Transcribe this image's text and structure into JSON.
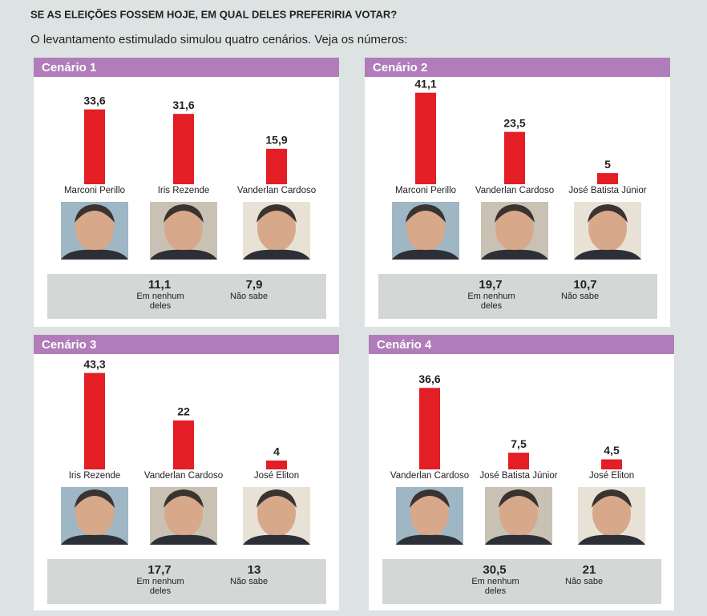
{
  "title": "SE AS ELEIÇÕES FOSSEM HOJE, EM QUAL DELES PREFERIRIA VOTAR?",
  "subtitle": "O levantamento estimulado simulou quatro cenários. Veja os números:",
  "chart_data": [
    {
      "type": "bar",
      "title": "Cenário 1",
      "color": "#e31e24",
      "categories": [
        "Marconi Perillo",
        "Iris Rezende",
        "Vanderlan Cardoso"
      ],
      "values": [
        33.6,
        31.6,
        15.9
      ],
      "value_labels": [
        "33,6",
        "31,6",
        "15,9"
      ],
      "other_categories": [
        "Em nenhum deles",
        "Não sabe"
      ],
      "other_values": [
        11.1,
        7.9
      ],
      "other_value_labels": [
        "11,1",
        "7,9"
      ]
    },
    {
      "type": "bar",
      "title": "Cenário 2",
      "color": "#e31e24",
      "categories": [
        "Marconi Perillo",
        "Vanderlan Cardoso",
        "José Batista Júnior"
      ],
      "values": [
        41.1,
        23.5,
        5
      ],
      "value_labels": [
        "41,1",
        "23,5",
        "5"
      ],
      "other_categories": [
        "Em nenhum deles",
        "Não sabe"
      ],
      "other_values": [
        19.7,
        10.7
      ],
      "other_value_labels": [
        "19,7",
        "10,7"
      ]
    },
    {
      "type": "bar",
      "title": "Cenário 3",
      "color": "#e31e24",
      "categories": [
        "Iris Rezende",
        "Vanderlan Cardoso",
        "José Eliton"
      ],
      "values": [
        43.3,
        22,
        4
      ],
      "value_labels": [
        "43,3",
        "22",
        "4"
      ],
      "other_categories": [
        "Em nenhum deles",
        "Não sabe"
      ],
      "other_values": [
        17.7,
        13
      ],
      "other_value_labels": [
        "17,7",
        "13"
      ]
    },
    {
      "type": "bar",
      "title": "Cenário 4",
      "color": "#e31e24",
      "categories": [
        "Vanderlan Cardoso",
        "José Batista Júnior",
        "José Eliton"
      ],
      "values": [
        36.6,
        7.5,
        4.5
      ],
      "value_labels": [
        "36,6",
        "7,5",
        "4,5"
      ],
      "other_categories": [
        "Em nenhum deles",
        "Não sabe"
      ],
      "other_values": [
        30.5,
        21
      ],
      "other_value_labels": [
        "30,5",
        "21"
      ]
    }
  ]
}
